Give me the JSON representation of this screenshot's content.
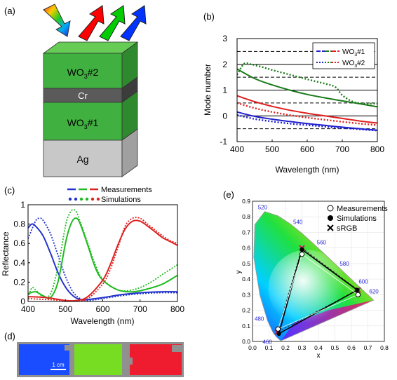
{
  "panels": {
    "a": {
      "label": "(a)",
      "layers": [
        "WO",
        "3",
        "#2",
        "Cr",
        "WO",
        "3",
        "#1",
        "Ag"
      ],
      "arrow_colors": [
        "#ff0000",
        "#00cc00",
        "#0033ff"
      ]
    },
    "b": {
      "label": "(b)"
    },
    "c": {
      "label": "(c)"
    },
    "d": {
      "label": "(d)",
      "scale_label": "1 cm",
      "swatch_colors": [
        "#1a4dff",
        "#77dd22",
        "#ee1c2e"
      ]
    },
    "e": {
      "label": "(e)"
    }
  },
  "chart_data": [
    {
      "panel": "b",
      "type": "line",
      "xlabel": "Wavelength  (nm)",
      "ylabel": "Mode number",
      "xlim": [
        400,
        800
      ],
      "ylim": [
        -1,
        3
      ],
      "xticks": [
        "400",
        "500",
        "600",
        "700",
        "800"
      ],
      "yticks": [
        "-1",
        "0",
        "1",
        "2",
        "3"
      ],
      "solid_gridlines": [
        0,
        1,
        2
      ],
      "dashed_gridlines": [
        -0.5,
        0.5,
        1.5,
        2.5
      ],
      "legend": {
        "position": "top-right",
        "entries": [
          {
            "pre": "WO",
            "sub": "3",
            "post": "#1",
            "style": "solid"
          },
          {
            "pre": "WO",
            "sub": "3",
            "post": "#2",
            "style": "dotted"
          }
        ]
      },
      "series": [
        {
          "color": "#1a7a1a",
          "style": "solid",
          "x": [
            400,
            450,
            500,
            550,
            600,
            650,
            700,
            750,
            800
          ],
          "y": [
            1.82,
            1.45,
            1.2,
            1.0,
            0.83,
            0.7,
            0.58,
            0.47,
            0.35
          ]
        },
        {
          "color": "#1a7a1a",
          "style": "dotted",
          "x": [
            400,
            420,
            440,
            470,
            500,
            550,
            600,
            650,
            680,
            700,
            730,
            760,
            800
          ],
          "y": [
            1.6,
            2.02,
            2.0,
            1.9,
            1.78,
            1.6,
            1.42,
            1.25,
            1.12,
            0.8,
            0.55,
            0.48,
            0.48
          ]
        },
        {
          "color": "#e02020",
          "style": "solid",
          "x": [
            400,
            450,
            500,
            550,
            600,
            650,
            700,
            750,
            800
          ],
          "y": [
            0.78,
            0.55,
            0.37,
            0.22,
            0.1,
            0.0,
            -0.1,
            -0.2,
            -0.28
          ]
        },
        {
          "color": "#e02020",
          "style": "dotted",
          "x": [
            400,
            450,
            500,
            550,
            600,
            650,
            700,
            750,
            800
          ],
          "y": [
            0.5,
            0.3,
            0.15,
            0.03,
            -0.07,
            -0.15,
            -0.23,
            -0.3,
            -0.36
          ]
        },
        {
          "color": "#2020d0",
          "style": "solid",
          "x": [
            400,
            450,
            500,
            550,
            600,
            650,
            700,
            750,
            800
          ],
          "y": [
            0.15,
            -0.02,
            -0.13,
            -0.22,
            -0.3,
            -0.37,
            -0.44,
            -0.5,
            -0.56
          ]
        },
        {
          "color": "#2020d0",
          "style": "dotted",
          "x": [
            400,
            450,
            500,
            550,
            600,
            650,
            700,
            750,
            800
          ],
          "y": [
            0.03,
            -0.12,
            -0.22,
            -0.3,
            -0.36,
            -0.42,
            -0.47,
            -0.52,
            -0.57
          ]
        }
      ]
    },
    {
      "panel": "c",
      "type": "line",
      "xlabel": "Wavelength (nm)",
      "ylabel": "Reflectance",
      "xlim": [
        400,
        800
      ],
      "ylim": [
        0,
        1
      ],
      "xticks": [
        "400",
        "500",
        "600",
        "700",
        "800"
      ],
      "yticks": [
        "0",
        "0.2",
        "0.4",
        "0.6",
        "0.8",
        "1"
      ],
      "legend": {
        "position": "top",
        "entries": [
          {
            "label": "Measurements",
            "style": "solid"
          },
          {
            "label": "Simulations",
            "style": "dotted"
          }
        ]
      },
      "series": [
        {
          "color": "#2233cc",
          "style": "solid",
          "x": [
            400,
            410,
            420,
            440,
            460,
            480,
            500,
            520,
            540,
            560,
            600,
            650,
            700,
            750,
            800
          ],
          "y": [
            0.76,
            0.8,
            0.78,
            0.68,
            0.5,
            0.3,
            0.15,
            0.06,
            0.02,
            0.02,
            0.04,
            0.07,
            0.09,
            0.1,
            0.1
          ]
        },
        {
          "color": "#2233cc",
          "style": "dotted",
          "x": [
            400,
            420,
            430,
            440,
            460,
            480,
            500,
            520,
            540,
            560,
            600,
            650,
            700,
            750,
            800
          ],
          "y": [
            0.65,
            0.83,
            0.86,
            0.84,
            0.7,
            0.48,
            0.26,
            0.1,
            0.03,
            0.01,
            0.03,
            0.06,
            0.08,
            0.09,
            0.09
          ]
        },
        {
          "color": "#22bb22",
          "style": "solid",
          "x": [
            400,
            420,
            440,
            460,
            480,
            500,
            510,
            520,
            530,
            540,
            560,
            580,
            600,
            640,
            680,
            720,
            760,
            800
          ],
          "y": [
            0.08,
            0.1,
            0.06,
            0.04,
            0.2,
            0.6,
            0.75,
            0.84,
            0.86,
            0.8,
            0.58,
            0.35,
            0.22,
            0.12,
            0.1,
            0.13,
            0.18,
            0.27
          ]
        },
        {
          "color": "#22bb22",
          "style": "dotted",
          "x": [
            400,
            410,
            420,
            440,
            460,
            480,
            500,
            510,
            520,
            530,
            540,
            560,
            580,
            600,
            640,
            680,
            720,
            760,
            800
          ],
          "y": [
            0.04,
            0.14,
            0.12,
            0.05,
            0.08,
            0.35,
            0.78,
            0.9,
            0.95,
            0.92,
            0.82,
            0.6,
            0.38,
            0.23,
            0.12,
            0.12,
            0.18,
            0.28,
            0.38
          ]
        },
        {
          "color": "#dd2222",
          "style": "solid",
          "x": [
            400,
            450,
            500,
            530,
            560,
            600,
            620,
            640,
            660,
            680,
            700,
            720,
            740,
            760,
            780,
            800
          ],
          "y": [
            0.05,
            0.04,
            0.01,
            0.01,
            0.05,
            0.22,
            0.38,
            0.58,
            0.75,
            0.83,
            0.83,
            0.78,
            0.72,
            0.66,
            0.62,
            0.58
          ]
        },
        {
          "color": "#dd2222",
          "style": "dotted",
          "x": [
            400,
            450,
            500,
            530,
            560,
            600,
            620,
            640,
            660,
            680,
            700,
            720,
            740,
            760,
            780,
            800
          ],
          "y": [
            0.03,
            0.02,
            0.01,
            0.01,
            0.03,
            0.18,
            0.33,
            0.55,
            0.78,
            0.86,
            0.86,
            0.8,
            0.74,
            0.68,
            0.63,
            0.6
          ]
        }
      ]
    },
    {
      "panel": "e",
      "type": "scatter",
      "xlabel": "x",
      "ylabel": "y",
      "xlim": [
        0,
        0.8
      ],
      "ylim": [
        0,
        0.9
      ],
      "xticks": [
        "0.0",
        "0.1",
        "0.2",
        "0.3",
        "0.4",
        "0.5",
        "0.6",
        "0.7",
        "0.8"
      ],
      "yticks": [
        "0.0",
        "0.1",
        "0.2",
        "0.3",
        "0.4",
        "0.5",
        "0.6",
        "0.7",
        "0.8",
        "0.9"
      ],
      "wavelength_labels": [
        {
          "label": "460",
          "x": 0.144,
          "y": 0.03
        },
        {
          "label": "480",
          "x": 0.091,
          "y": 0.133
        },
        {
          "label": "520",
          "x": 0.074,
          "y": 0.834
        },
        {
          "label": "540",
          "x": 0.23,
          "y": 0.754
        },
        {
          "label": "560",
          "x": 0.373,
          "y": 0.624
        },
        {
          "label": "580",
          "x": 0.512,
          "y": 0.487
        },
        {
          "label": "600",
          "x": 0.627,
          "y": 0.372
        },
        {
          "label": "620",
          "x": 0.691,
          "y": 0.308
        }
      ],
      "legend": {
        "position": "top-right",
        "entries": [
          {
            "label": "Measurements",
            "marker": "open-circle"
          },
          {
            "label": "Simulations",
            "marker": "filled-circle"
          },
          {
            "label": "sRGB",
            "marker": "x"
          }
        ]
      },
      "measurements": [
        {
          "x": 0.3,
          "y": 0.56
        },
        {
          "x": 0.64,
          "y": 0.3
        },
        {
          "x": 0.155,
          "y": 0.08
        }
      ],
      "simulations": [
        {
          "x": 0.3,
          "y": 0.59
        },
        {
          "x": 0.635,
          "y": 0.33
        },
        {
          "x": 0.16,
          "y": 0.05
        }
      ],
      "srgb": [
        {
          "x": 0.3,
          "y": 0.6
        },
        {
          "x": 0.64,
          "y": 0.33
        },
        {
          "x": 0.15,
          "y": 0.06
        }
      ]
    }
  ]
}
